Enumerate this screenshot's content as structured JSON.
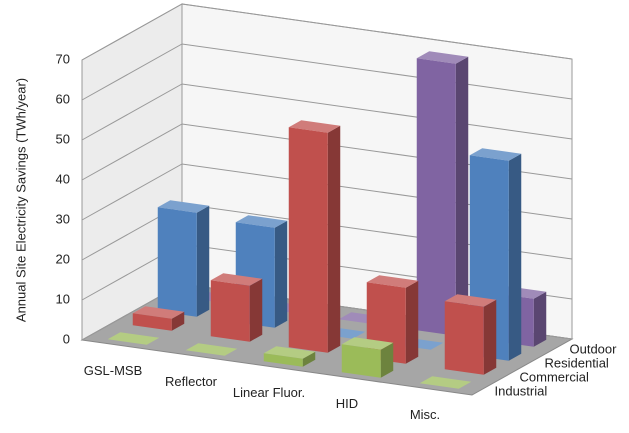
{
  "chart_data": {
    "type": "bar3d",
    "y_label": "Annual Site Electricity Savings (TWh/year)",
    "categories": [
      "GSL-MSB",
      "Reflector",
      "Linear Fluor.",
      "HID",
      "Misc."
    ],
    "series": [
      {
        "name": "Industrial",
        "color": "#9bbb59",
        "values": [
          0,
          0,
          2,
          7,
          0
        ]
      },
      {
        "name": "Commercial",
        "color": "#c0504d",
        "values": [
          3,
          14,
          55,
          19,
          17
        ]
      },
      {
        "name": "Residential",
        "color": "#4f81bd",
        "values": [
          26,
          25,
          0,
          0,
          50
        ]
      },
      {
        "name": "Outdoor",
        "color": "#8064a2",
        "values": [
          0,
          0,
          0,
          68,
          12
        ]
      }
    ],
    "ylim": [
      0,
      70
    ],
    "yticks": [
      0,
      10,
      20,
      30,
      40,
      50,
      60,
      70
    ],
    "grid": true
  }
}
